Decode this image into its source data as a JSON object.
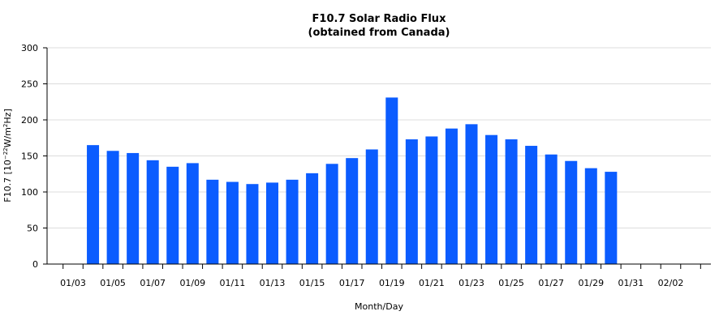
{
  "chart_data": {
    "type": "bar",
    "title": "F10.7 Solar Radio Flux",
    "subtitle": "(obtained from Canada)",
    "xlabel": "Month/Day",
    "ylabel_parts": [
      "F10.7 [10",
      "−22",
      "W/m",
      "2",
      "Hz]"
    ],
    "ylim": [
      0,
      300
    ],
    "yticks": [
      0,
      50,
      100,
      150,
      200,
      250,
      300
    ],
    "grid": "horizontal",
    "bar_color": "#0b5cff",
    "categories": [
      "01/03",
      "01/04",
      "01/05",
      "01/06",
      "01/07",
      "01/08",
      "01/09",
      "01/10",
      "01/11",
      "01/12",
      "01/13",
      "01/14",
      "01/15",
      "01/16",
      "01/17",
      "01/18",
      "01/19",
      "01/20",
      "01/21",
      "01/22",
      "01/23",
      "01/24",
      "01/25",
      "01/26",
      "01/27",
      "01/28",
      "01/29",
      "01/30",
      "01/31",
      "02/01",
      "02/02",
      "02/03"
    ],
    "values": [
      null,
      165,
      157,
      154,
      144,
      135,
      140,
      117,
      114,
      111,
      113,
      117,
      126,
      139,
      147,
      159,
      231,
      173,
      177,
      188,
      194,
      179,
      173,
      164,
      152,
      143,
      133,
      128,
      null,
      null,
      null,
      null
    ],
    "xtick_labels": [
      "01/03",
      "01/05",
      "01/07",
      "01/09",
      "01/11",
      "01/13",
      "01/15",
      "01/17",
      "01/19",
      "01/21",
      "01/23",
      "01/25",
      "01/27",
      "01/29",
      "01/31",
      "02/02"
    ]
  }
}
